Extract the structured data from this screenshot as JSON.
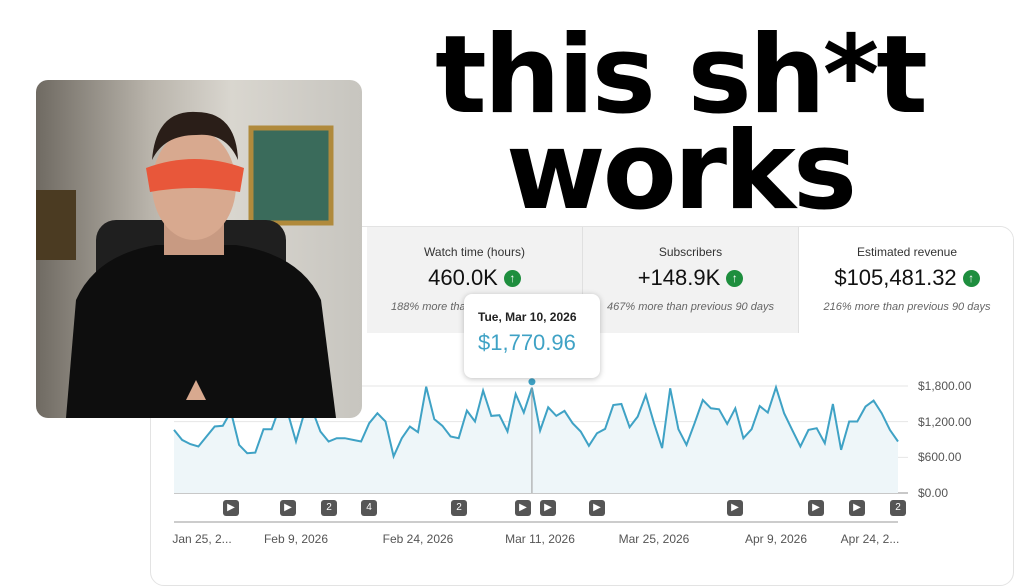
{
  "headline": {
    "line1": "this sh*t",
    "line2": "works"
  },
  "stats": [
    {
      "label": "Watch time (hours)",
      "value": "460.0K",
      "trend": "up",
      "comparison": "188% more than previous 90 days",
      "comparison_visible": "188% more tha"
    },
    {
      "label": "Subscribers",
      "value": "+148.9K",
      "trend": "up",
      "comparison": "467% more than previous 90 days"
    },
    {
      "label": "Estimated revenue",
      "value": "$105,481.32",
      "trend": "up",
      "comparison": "216% more than previous 90 days",
      "selected": true
    }
  ],
  "tooltip": {
    "date": "Tue, Mar 10, 2026",
    "value": "$1,770.96"
  },
  "colors": {
    "line": "#3fa2c5",
    "fill": "#eef6f9",
    "up": "#1e8e3e"
  },
  "chart_data": {
    "type": "area",
    "ylabel": "",
    "xlabel": "",
    "ylim": [
      0,
      1800
    ],
    "y_ticks": [
      "$0.00",
      "$600.00",
      "$1,200.00",
      "$1,800.00"
    ],
    "x_ticks": [
      "Jan 25, 2...",
      "Feb 9, 2026",
      "Feb 24, 2026",
      "Mar 11, 2026",
      "Mar 25, 2026",
      "Apr 9, 2026",
      "Apr 24, 2..."
    ],
    "grid": true,
    "highlight": {
      "date": "Tue, Mar 10, 2026",
      "value": 1770.96
    },
    "values": [
      1062,
      894,
      822,
      783,
      950,
      1118,
      1130,
      1370,
      810,
      670,
      680,
      1073,
      1073,
      1453,
      1342,
      866,
      1342,
      1397,
      1034,
      866,
      922,
      922,
      894,
      866,
      1174,
      1342,
      1202,
      615,
      922,
      1118,
      1023,
      1789,
      1241,
      1130,
      950,
      922,
      1386,
      1202,
      1722,
      1297,
      1308,
      1034,
      1666,
      1353,
      1770.96,
      1050,
      1442,
      1297,
      1381,
      1174,
      1034,
      794,
      1006,
      1079,
      1481,
      1498,
      1107,
      1286,
      1649,
      1174,
      755,
      1761,
      1073,
      810,
      1174,
      1565,
      1425,
      1408,
      1163,
      1425,
      922,
      1073,
      1464,
      1353,
      1778,
      1342,
      1062,
      783,
      1062,
      1090,
      838,
      1498,
      727,
      1202,
      1202,
      1453,
      1554,
      1342,
      1062,
      866
    ]
  },
  "markers": [
    {
      "type": "video"
    },
    {
      "type": "video"
    },
    {
      "type": "count",
      "label": "2"
    },
    {
      "type": "count",
      "label": "4"
    },
    {
      "type": "count",
      "label": "2"
    },
    {
      "type": "video"
    },
    {
      "type": "video"
    },
    {
      "type": "video"
    },
    {
      "type": "video"
    },
    {
      "type": "video"
    },
    {
      "type": "video"
    },
    {
      "type": "count",
      "label": "2"
    }
  ]
}
